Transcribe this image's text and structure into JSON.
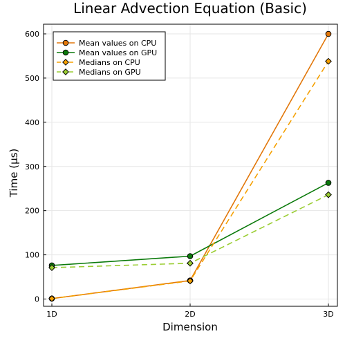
{
  "chart_data": {
    "type": "line",
    "title": "Linear Advection Equation (Basic)",
    "xlabel": "Dimension",
    "ylabel": "Time (μs)",
    "categories": [
      "1D",
      "2D",
      "3D"
    ],
    "ylim": [
      -15,
      620
    ],
    "yticks": [
      0,
      100,
      200,
      300,
      400,
      500,
      600
    ],
    "grid": true,
    "legend_position": "top-left",
    "series": [
      {
        "name": "Mean values on CPU",
        "values": [
          1,
          42,
          600
        ],
        "color": "#e2770a",
        "line": "solid",
        "marker": "circle"
      },
      {
        "name": "Mean values on GPU",
        "values": [
          76,
          97,
          263
        ],
        "color": "#0b7a0b",
        "line": "solid",
        "marker": "circle"
      },
      {
        "name": "Medians on CPU",
        "values": [
          1,
          41,
          538
        ],
        "color": "#f5a000",
        "line": "dashed",
        "marker": "diamond"
      },
      {
        "name": "Medians on GPU",
        "values": [
          71,
          81,
          236
        ],
        "color": "#9acd32",
        "line": "dashed",
        "marker": "diamond"
      }
    ]
  }
}
